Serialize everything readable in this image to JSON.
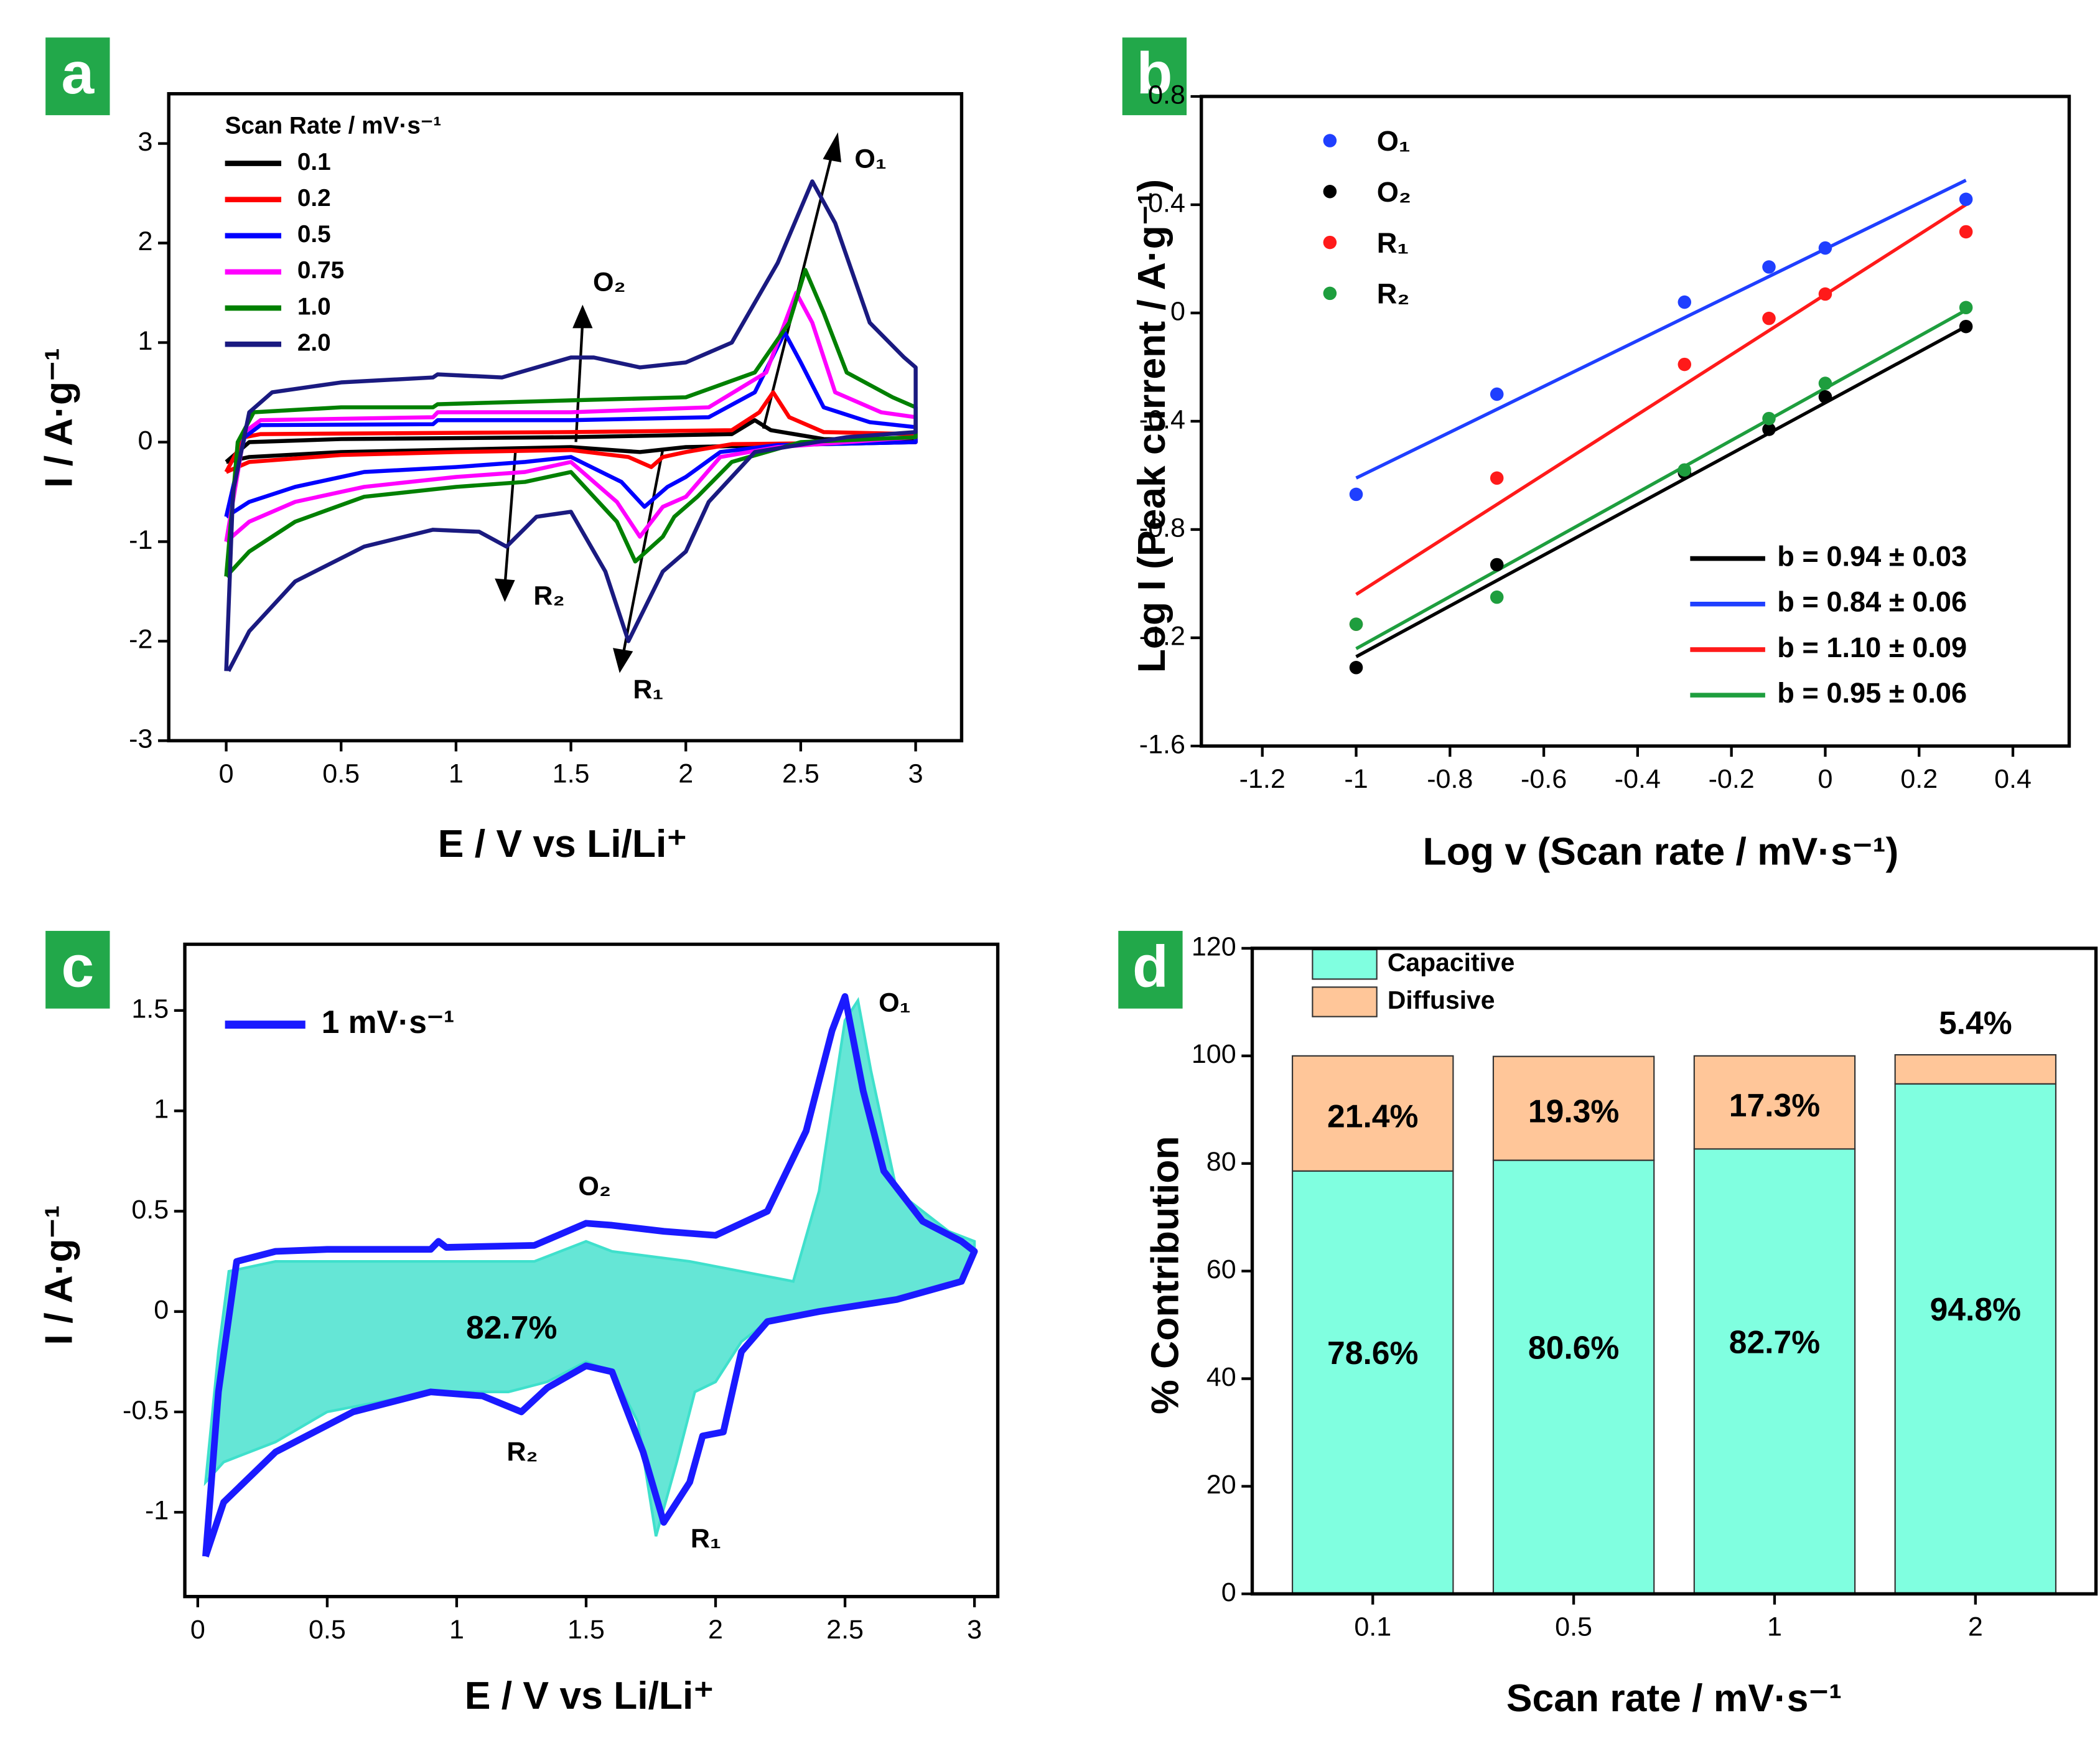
{
  "chart_data": [
    {
      "type": "line",
      "panel_label": "a",
      "x_label": "E / V vs Li/Li⁺",
      "y_label": "I / A·g⁻¹",
      "legend_title": "Scan Rate / mV·s⁻¹",
      "xlim": [
        -0.25,
        3.2
      ],
      "xticks": [
        0,
        0.5,
        1,
        1.5,
        2,
        2.5,
        3
      ],
      "ylim": [
        -3,
        3.5
      ],
      "yticks": [
        -3,
        -2,
        -1,
        0,
        1,
        2,
        3
      ],
      "annotations": [
        "O₁",
        "O₂",
        "R₁",
        "R₂"
      ],
      "series": [
        {
          "name": "0.1",
          "color": "#000000",
          "x": [
            0.0,
            0.1,
            0.5,
            1.5,
            2.2,
            2.3,
            2.37,
            2.6,
            3.0,
            3.0,
            2.0,
            1.8,
            1.5,
            0.5,
            0.1,
            0.0
          ],
          "values": [
            -0.2,
            0.0,
            0.03,
            0.05,
            0.08,
            0.22,
            0.12,
            0.03,
            0.02,
            0.0,
            -0.05,
            -0.1,
            -0.05,
            -0.1,
            -0.15,
            -0.2
          ]
        },
        {
          "name": "0.2",
          "color": "#ff0000",
          "x": [
            0.0,
            0.08,
            0.15,
            1.5,
            2.2,
            2.32,
            2.38,
            2.45,
            2.6,
            3.0,
            3.0,
            2.2,
            2.0,
            1.9,
            1.85,
            1.75,
            1.5,
            1.0,
            0.5,
            0.1,
            0.0
          ],
          "values": [
            -0.3,
            0.05,
            0.08,
            0.1,
            0.12,
            0.3,
            0.5,
            0.25,
            0.1,
            0.08,
            0.0,
            -0.02,
            -0.1,
            -0.15,
            -0.25,
            -0.15,
            -0.08,
            -0.1,
            -0.13,
            -0.2,
            -0.3
          ]
        },
        {
          "name": "0.5",
          "color": "#0000ff",
          "x": [
            0.0,
            0.08,
            0.15,
            0.9,
            0.92,
            1.5,
            2.1,
            2.3,
            2.43,
            2.5,
            2.6,
            2.8,
            3.0,
            3.0,
            2.4,
            2.15,
            2.0,
            1.92,
            1.82,
            1.72,
            1.5,
            1.3,
            1.0,
            0.6,
            0.3,
            0.1,
            0.0
          ],
          "values": [
            -0.75,
            0.05,
            0.17,
            0.18,
            0.22,
            0.22,
            0.25,
            0.5,
            1.1,
            0.8,
            0.35,
            0.2,
            0.15,
            0.0,
            -0.03,
            -0.1,
            -0.35,
            -0.45,
            -0.65,
            -0.4,
            -0.15,
            -0.2,
            -0.25,
            -0.3,
            -0.45,
            -0.6,
            -0.75
          ]
        },
        {
          "name": "0.75",
          "color": "#ff00ff",
          "x": [
            0.0,
            0.08,
            0.15,
            0.9,
            0.92,
            1.5,
            2.1,
            2.35,
            2.48,
            2.55,
            2.65,
            2.85,
            3.0,
            3.0,
            2.4,
            2.15,
            2.0,
            1.9,
            1.8,
            1.7,
            1.5,
            1.3,
            1.0,
            0.6,
            0.3,
            0.1,
            0.0
          ],
          "values": [
            -1.0,
            0.1,
            0.22,
            0.25,
            0.3,
            0.3,
            0.35,
            0.7,
            1.5,
            1.2,
            0.5,
            0.3,
            0.25,
            0.05,
            -0.05,
            -0.15,
            -0.55,
            -0.65,
            -0.95,
            -0.6,
            -0.2,
            -0.3,
            -0.35,
            -0.45,
            -0.6,
            -0.8,
            -1.0
          ]
        },
        {
          "name": "1.0",
          "color": "#008000",
          "x": [
            0.0,
            0.05,
            0.12,
            0.5,
            0.9,
            0.92,
            1.5,
            2.0,
            2.3,
            2.45,
            2.52,
            2.6,
            2.7,
            2.9,
            3.0,
            3.0,
            2.5,
            2.2,
            2.05,
            1.95,
            1.9,
            1.78,
            1.7,
            1.5,
            1.3,
            1.0,
            0.6,
            0.3,
            0.1,
            0.0
          ],
          "values": [
            -1.35,
            0.0,
            0.3,
            0.35,
            0.35,
            0.38,
            0.42,
            0.45,
            0.7,
            1.2,
            1.73,
            1.3,
            0.7,
            0.45,
            0.35,
            0.05,
            0.0,
            -0.2,
            -0.55,
            -0.75,
            -0.95,
            -1.2,
            -0.8,
            -0.3,
            -0.4,
            -0.45,
            -0.55,
            -0.8,
            -1.1,
            -1.35
          ]
        },
        {
          "name": "2.0",
          "color": "#1a1a80",
          "x": [
            0.0,
            0.03,
            0.1,
            0.2,
            0.5,
            0.9,
            0.92,
            1.2,
            1.5,
            1.6,
            1.8,
            2.0,
            2.2,
            2.4,
            2.55,
            2.65,
            2.8,
            2.95,
            3.0,
            3.0,
            2.7,
            2.3,
            2.1,
            2.0,
            1.9,
            1.75,
            1.65,
            1.5,
            1.35,
            1.22,
            1.1,
            0.9,
            0.6,
            0.3,
            0.1,
            0.01
          ],
          "values": [
            -2.3,
            -0.5,
            0.3,
            0.5,
            0.6,
            0.65,
            0.68,
            0.65,
            0.85,
            0.85,
            0.75,
            0.8,
            1.0,
            1.8,
            2.62,
            2.2,
            1.2,
            0.85,
            0.75,
            0.1,
            0.05,
            -0.1,
            -0.6,
            -1.1,
            -1.3,
            -2.0,
            -1.3,
            -0.7,
            -0.75,
            -1.05,
            -0.9,
            -0.88,
            -1.05,
            -1.4,
            -1.9,
            -2.3
          ]
        }
      ]
    },
    {
      "type": "scatter",
      "panel_label": "b",
      "x_label": "Log v (Scan rate / mV·s⁻¹)",
      "y_label": "Log I (Peak current / A·g⁻¹)",
      "xlim": [
        -1.33,
        0.52
      ],
      "xticks": [
        -1.2,
        -1,
        -0.8,
        -0.6,
        -0.4,
        -0.2,
        0,
        0.2,
        0.4
      ],
      "ylim": [
        -1.6,
        0.8
      ],
      "yticks": [
        -1.6,
        -1.2,
        -0.8,
        -0.4,
        0,
        0.4,
        0.8
      ],
      "x": [
        -1,
        -0.7,
        -0.3,
        -0.12,
        0,
        0.3
      ],
      "series": [
        {
          "name": "O₁",
          "color": "#1f3fff",
          "values": [
            -0.67,
            -0.3,
            0.04,
            0.17,
            0.24,
            0.42
          ]
        },
        {
          "name": "O₂",
          "color": "#000000",
          "values": [
            -1.31,
            -0.93,
            -0.59,
            -0.43,
            -0.31,
            -0.05
          ]
        },
        {
          "name": "R₁",
          "color": "#ff1a1a",
          "values": [
            -1.15,
            -0.61,
            -0.19,
            -0.02,
            0.07,
            0.3
          ]
        },
        {
          "name": "R₂",
          "color": "#1e9e3e",
          "values": [
            -1.15,
            -1.05,
            -0.58,
            -0.39,
            -0.26,
            0.02
          ]
        }
      ],
      "fits": [
        {
          "name": "b = 0.94 ± 0.03",
          "color": "#000000",
          "x": [
            -1,
            0.3
          ],
          "values": [
            -1.27,
            -0.05
          ]
        },
        {
          "name": "b = 0.84 ± 0.06",
          "color": "#1f3fff",
          "x": [
            -1,
            0.3
          ],
          "values": [
            -0.61,
            0.49
          ]
        },
        {
          "name": "b = 1.10 ± 0.09",
          "color": "#ff1a1a",
          "x": [
            -1,
            0.3
          ],
          "values": [
            -1.04,
            0.4
          ]
        },
        {
          "name": "b = 0.95 ± 0.06",
          "color": "#1e9e3e",
          "x": [
            -1,
            0.3
          ],
          "values": [
            -1.24,
            0.01
          ]
        }
      ]
    },
    {
      "type": "line",
      "panel_label": "c",
      "x_label": "E / V vs Li/Li⁺",
      "y_label": "I / A·g⁻¹",
      "xlim": [
        -0.05,
        3.09
      ],
      "xticks": [
        0,
        0.5,
        1,
        1.5,
        2,
        2.5,
        3
      ],
      "ylim": [
        -1.42,
        1.83
      ],
      "yticks": [
        -1,
        -0.5,
        0,
        0.5,
        1,
        1.5
      ],
      "annotations": [
        "O₁",
        "O₂",
        "R₂",
        "R₁",
        "82.7%"
      ],
      "fill_area": {
        "color": "#3fe0cc",
        "x": [
          0.03,
          0.08,
          0.12,
          0.3,
          0.5,
          0.9,
          1.3,
          1.5,
          1.6,
          1.9,
          2.1,
          2.3,
          2.4,
          2.5,
          2.55,
          2.6,
          2.7,
          2.9,
          3.0,
          3.0,
          2.95,
          2.7,
          2.4,
          2.2,
          2.1,
          2.0,
          1.92,
          1.85,
          1.77,
          1.7,
          1.6,
          1.5,
          1.35,
          1.2,
          0.9,
          0.5,
          0.3,
          0.1,
          0.03
        ],
        "values": [
          -0.85,
          -0.2,
          0.2,
          0.25,
          0.25,
          0.25,
          0.25,
          0.35,
          0.3,
          0.25,
          0.2,
          0.15,
          0.6,
          1.45,
          1.55,
          1.2,
          0.6,
          0.4,
          0.35,
          0.3,
          0.15,
          0.06,
          0.0,
          -0.05,
          -0.15,
          -0.35,
          -0.4,
          -0.75,
          -1.12,
          -0.55,
          -0.3,
          -0.25,
          -0.35,
          -0.4,
          -0.4,
          -0.5,
          -0.65,
          -0.75,
          -0.85
        ]
      },
      "series": [
        {
          "name": "1 mV·s⁻¹",
          "color": "#1a1aff",
          "x": [
            0.03,
            0.08,
            0.15,
            0.3,
            0.5,
            0.9,
            0.93,
            0.96,
            1.3,
            1.5,
            1.6,
            1.8,
            2.0,
            2.2,
            2.35,
            2.45,
            2.5,
            2.57,
            2.65,
            2.8,
            2.95,
            3.0,
            3.0,
            2.95,
            2.7,
            2.4,
            2.2,
            2.1,
            2.03,
            1.95,
            1.9,
            1.8,
            1.72,
            1.6,
            1.5,
            1.35,
            1.25,
            1.1,
            0.9,
            0.6,
            0.3,
            0.1,
            0.03
          ],
          "values": [
            -1.22,
            -0.4,
            0.25,
            0.3,
            0.31,
            0.31,
            0.35,
            0.32,
            0.33,
            0.44,
            0.43,
            0.4,
            0.38,
            0.5,
            0.9,
            1.4,
            1.57,
            1.1,
            0.7,
            0.45,
            0.35,
            0.3,
            0.3,
            0.15,
            0.06,
            0.0,
            -0.05,
            -0.2,
            -0.6,
            -0.62,
            -0.85,
            -1.05,
            -0.7,
            -0.3,
            -0.27,
            -0.38,
            -0.5,
            -0.42,
            -0.4,
            -0.5,
            -0.7,
            -0.95,
            -1.22
          ]
        }
      ]
    },
    {
      "type": "bar",
      "panel_label": "d",
      "x_label": "Scan rate / mV·s⁻¹",
      "y_label": "% Contribution",
      "categories": [
        "0.1",
        "0.5",
        "1",
        "2"
      ],
      "ylim": [
        0,
        120
      ],
      "yticks": [
        0,
        20,
        40,
        60,
        80,
        100,
        120
      ],
      "stacked": true,
      "series": [
        {
          "name": "Capacitive",
          "color": "#80ffe0",
          "values": [
            78.6,
            80.6,
            82.7,
            94.8
          ],
          "value_labels": [
            "78.6%",
            "80.6%",
            "82.7%",
            "94.8%"
          ]
        },
        {
          "name": "Diffusive",
          "color": "#ffc699",
          "values": [
            21.4,
            19.3,
            17.3,
            5.4
          ],
          "value_labels": [
            "21.4%",
            "19.3%",
            "17.3%",
            "5.4%"
          ]
        }
      ]
    }
  ]
}
